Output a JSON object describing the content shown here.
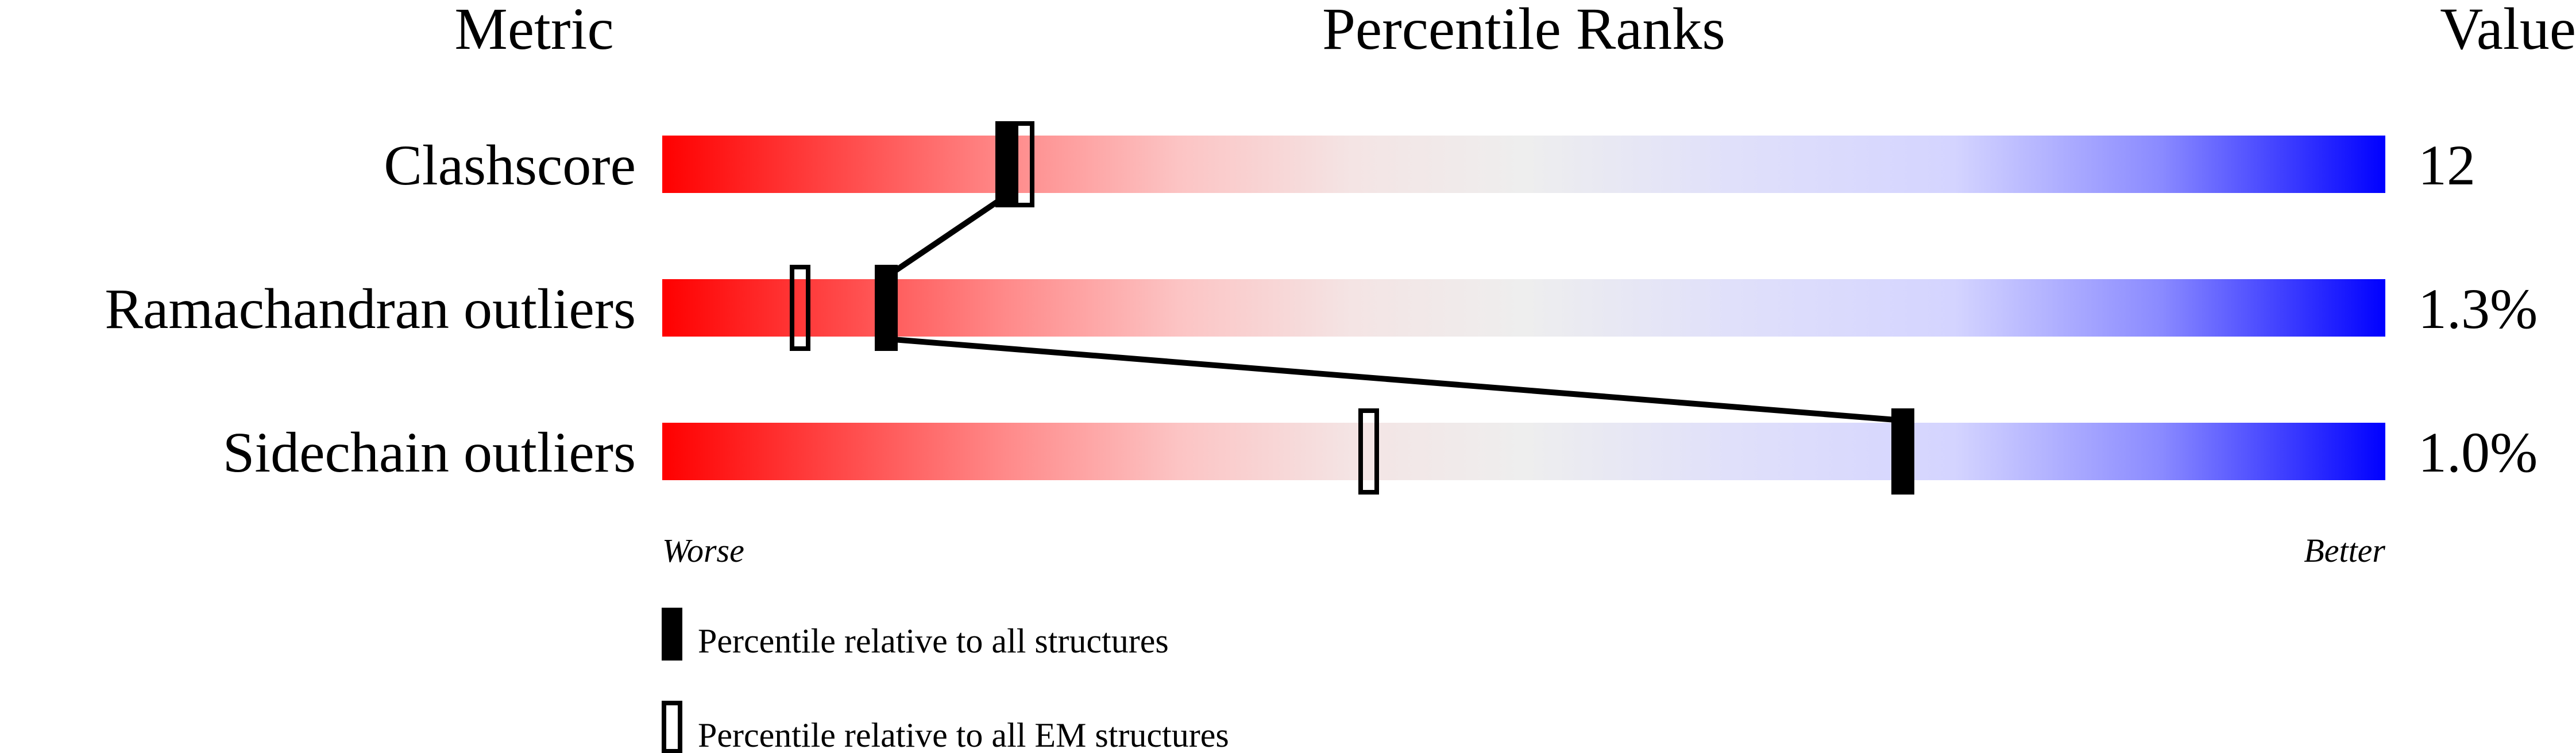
{
  "chart_data": {
    "type": "percentile-slider",
    "headers": {
      "metric": "Metric",
      "ranks": "Percentile Ranks",
      "value": "Value"
    },
    "xlim": [
      0,
      100
    ],
    "axis_labels": {
      "left": "Worse",
      "right": "Better"
    },
    "gradient_colors": {
      "worse": "#ff0000",
      "middle": "#eeeeee",
      "better": "#0000ff"
    },
    "rows": [
      {
        "metric": "Clashscore",
        "value": "12",
        "percentile_all": 20,
        "percentile_em": 21
      },
      {
        "metric": "Ramachandran outliers",
        "value": "1.3%",
        "percentile_all": 13,
        "percentile_em": 8
      },
      {
        "metric": "Sidechain outliers",
        "value": "1.0%",
        "percentile_all": 72,
        "percentile_em": 41
      }
    ],
    "legend": {
      "all": "Percentile relative to all structures",
      "em": "Percentile relative to all EM structures"
    }
  }
}
